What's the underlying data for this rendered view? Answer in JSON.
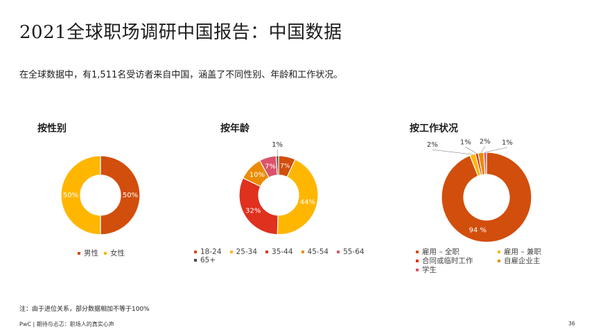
{
  "page": {
    "title": "2021全球职场调研中国报告：中国数据",
    "subtitle": "在全球数据中，有1,511名受访者来自中国，涵盖了不同性别、年龄和工作状况。",
    "footnote": "注：由于进位关系，部分数据相加不等于100%",
    "footer": "PwC | 期待与忐忑：职场人的真实心声",
    "page_number": "36"
  },
  "chart_data": [
    {
      "type": "pie",
      "title": "按性别",
      "categories": [
        "男性",
        "女性"
      ],
      "values": [
        50,
        50
      ],
      "labels": [
        "50%",
        "50%"
      ],
      "colors": [
        "#d24e0c",
        "#ffb600"
      ]
    },
    {
      "type": "pie",
      "title": "按年龄",
      "categories": [
        "18-24",
        "25-34",
        "35-44",
        "45-54",
        "55-64",
        "65+"
      ],
      "values": [
        7,
        44,
        32,
        10,
        7,
        1
      ],
      "labels": [
        "7%",
        "44%",
        "32%",
        "10%",
        "7%",
        "1%"
      ],
      "colors": [
        "#d24e0c",
        "#ffb600",
        "#e0301e",
        "#eb8c00",
        "#db536a",
        "#4a4a4a"
      ]
    },
    {
      "type": "pie",
      "title": "按工作状况",
      "categories": [
        "雇用 – 全职",
        "雇用 – 兼职",
        "合同或临时工作",
        "自雇企业主",
        "学生"
      ],
      "values": [
        94,
        2,
        1,
        2,
        1
      ],
      "labels": [
        "94 %",
        "2%",
        "1%",
        "2%",
        "1%"
      ],
      "colors": [
        "#d24e0c",
        "#ffb600",
        "#e0301e",
        "#eb8c00",
        "#db536a"
      ]
    }
  ]
}
